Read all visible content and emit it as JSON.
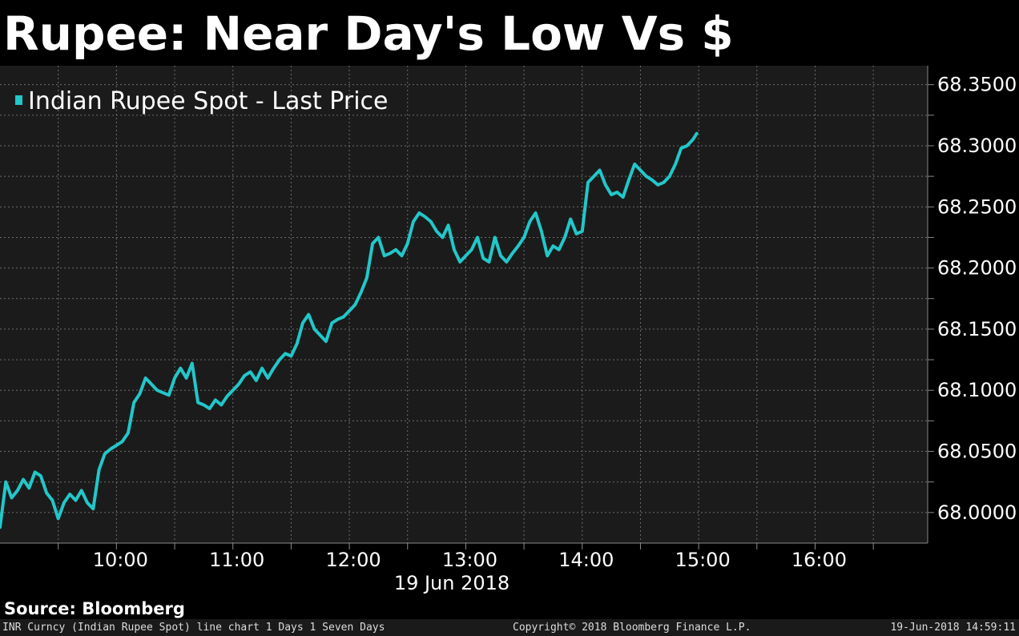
{
  "header": {
    "title": "Rupee: Near Day's Low Vs $"
  },
  "source": "Source: Bloomberg",
  "footer": {
    "left": "INR Curncy (Indian Rupee Spot) line chart 1 Days 1 Seven Days",
    "center": "Copyright© 2018 Bloomberg Finance L.P.",
    "right": "19-Jun-2018 14:59:11"
  },
  "colors": {
    "background": "#1b1b1b",
    "line": "#22c7c9",
    "grid": "#6e6e6e",
    "text": "#ffffff"
  },
  "chart_data": {
    "type": "line",
    "title": "Rupee: Near Day's Low Vs $",
    "date_label": "19 Jun 2018",
    "x_ticks": [
      "10:00",
      "11:00",
      "12:00",
      "13:00",
      "14:00",
      "15:00",
      "16:00"
    ],
    "y_ticks": [
      "68.0000",
      "68.0500",
      "68.1000",
      "68.1500",
      "68.2000",
      "68.2500",
      "68.3000",
      "68.3500"
    ],
    "xlim": [
      "09:00",
      "16:58"
    ],
    "ylim": [
      67.975,
      68.3655
    ],
    "y_axis_side": "right",
    "grid": true,
    "legend": {
      "position": "top-left"
    },
    "series": [
      {
        "name": "Indian Rupee Spot - Last Price",
        "x": [
          "09:00",
          "09:03",
          "09:06",
          "09:09",
          "09:12",
          "09:15",
          "09:18",
          "09:21",
          "09:24",
          "09:27",
          "09:30",
          "09:33",
          "09:36",
          "09:39",
          "09:42",
          "09:45",
          "09:48",
          "09:51",
          "09:54",
          "09:57",
          "10:00",
          "10:03",
          "10:06",
          "10:09",
          "10:12",
          "10:15",
          "10:18",
          "10:21",
          "10:24",
          "10:27",
          "10:30",
          "10:33",
          "10:36",
          "10:39",
          "10:42",
          "10:45",
          "10:48",
          "10:51",
          "10:54",
          "10:57",
          "11:00",
          "11:03",
          "11:06",
          "11:09",
          "11:12",
          "11:15",
          "11:18",
          "11:21",
          "11:24",
          "11:27",
          "11:30",
          "11:33",
          "11:36",
          "11:39",
          "11:42",
          "11:45",
          "11:48",
          "11:51",
          "11:54",
          "11:57",
          "12:00",
          "12:03",
          "12:06",
          "12:09",
          "12:12",
          "12:15",
          "12:18",
          "12:21",
          "12:24",
          "12:27",
          "12:30",
          "12:33",
          "12:36",
          "12:39",
          "12:42",
          "12:45",
          "12:48",
          "12:51",
          "12:54",
          "12:57",
          "13:00",
          "13:03",
          "13:06",
          "13:09",
          "13:12",
          "13:15",
          "13:18",
          "13:21",
          "13:24",
          "13:27",
          "13:30",
          "13:33",
          "13:36",
          "13:39",
          "13:42",
          "13:45",
          "13:48",
          "13:51",
          "13:54",
          "13:57",
          "14:00",
          "14:03",
          "14:06",
          "14:09",
          "14:12",
          "14:15",
          "14:18",
          "14:21",
          "14:24",
          "14:27",
          "14:30",
          "14:33",
          "14:36",
          "14:39",
          "14:42",
          "14:45",
          "14:48",
          "14:51",
          "14:54",
          "14:57",
          "14:59"
        ],
        "values": [
          67.988,
          68.025,
          68.012,
          68.018,
          68.027,
          68.02,
          68.033,
          68.03,
          68.016,
          68.01,
          67.995,
          68.008,
          68.015,
          68.01,
          68.018,
          68.008,
          68.003,
          68.035,
          68.048,
          68.052,
          68.055,
          68.058,
          68.065,
          68.09,
          68.097,
          68.11,
          68.105,
          68.1,
          68.098,
          68.096,
          68.11,
          68.118,
          68.11,
          68.122,
          68.09,
          68.088,
          68.085,
          68.092,
          68.088,
          68.095,
          68.1,
          68.105,
          68.112,
          68.115,
          68.108,
          68.118,
          68.11,
          68.118,
          68.125,
          68.13,
          68.128,
          68.138,
          68.155,
          68.162,
          68.15,
          68.145,
          68.14,
          68.155,
          68.158,
          68.16,
          68.165,
          68.17,
          68.18,
          68.192,
          68.22,
          68.225,
          68.21,
          68.212,
          68.215,
          68.21,
          68.22,
          68.238,
          68.245,
          68.242,
          68.238,
          68.23,
          68.225,
          68.235,
          68.215,
          68.205,
          68.21,
          68.215,
          68.225,
          68.208,
          68.205,
          68.225,
          68.21,
          68.205,
          68.212,
          68.218,
          68.225,
          68.238,
          68.245,
          68.23,
          68.21,
          68.218,
          68.215,
          68.225,
          68.24,
          68.228,
          68.23,
          68.27,
          68.275,
          68.28,
          68.268,
          68.26,
          68.262,
          68.258,
          68.272,
          68.285,
          68.28,
          68.275,
          68.272,
          68.268,
          68.27,
          68.275,
          68.285,
          68.298,
          68.3,
          68.305,
          68.31
        ]
      }
    ]
  }
}
